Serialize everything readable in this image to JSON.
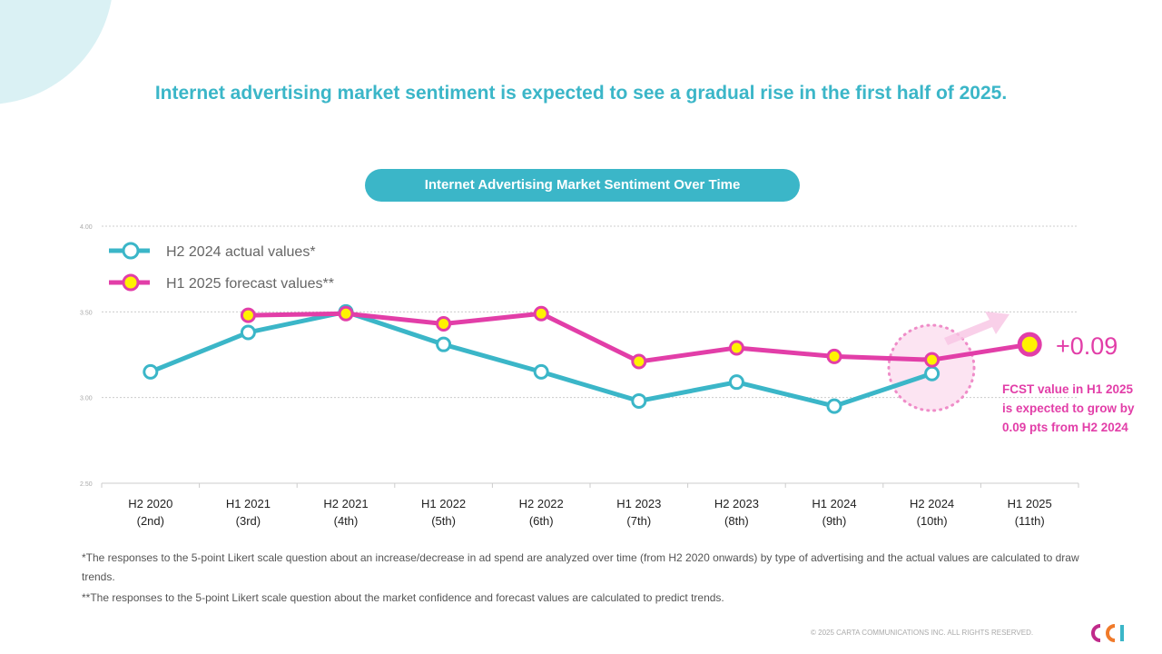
{
  "title": "Internet advertising market sentiment is expected to see a gradual rise in the first half of 2025.",
  "chart_data": {
    "type": "line",
    "title": "Internet Advertising Market Sentiment Over Time",
    "categories": [
      "H2 2020\n(2nd)",
      "H1 2021\n(3rd)",
      "H2 2021\n(4th)",
      "H1 2022\n(5th)",
      "H2 2022\n(6th)",
      "H1 2023\n(7th)",
      "H2 2023\n(8th)",
      "H1 2024\n(9th)",
      "H2 2024\n(10th)",
      "H1 2025\n(11th)"
    ],
    "ylim": [
      2.5,
      4.0
    ],
    "yticks": [
      "2.50",
      "3.00",
      "3.50",
      "4.00"
    ],
    "grid": true,
    "legend": "top-left",
    "series": [
      {
        "name": "H2 2024 actual values*",
        "color": "#3bb6c8",
        "values": [
          3.15,
          3.38,
          3.5,
          3.31,
          3.15,
          2.98,
          3.09,
          2.95,
          3.14,
          null
        ]
      },
      {
        "name": "H1 2025 forecast values**",
        "color": "#e23ea8",
        "values": [
          null,
          3.48,
          3.49,
          3.43,
          3.49,
          3.21,
          3.29,
          3.24,
          3.22,
          3.31
        ]
      }
    ],
    "annotation_delta": "+0.09",
    "annotation_text": "FCST value in H1 2025 is expected to grow by 0.09 pts from H2 2024"
  },
  "notes": [
    "*The responses to the 5-point Likert scale question about an increase/decrease in ad spend are analyzed over time (from H2 2020 onwards) by type of advertising and the actual values are calculated to draw trends.",
    "**The responses to the 5-point Likert scale question about the market confidence and forecast values are calculated to predict trends."
  ],
  "copyright": "© 2025 CARTA COMMUNICATIONS INC.    ALL RIGHTS RESERVED.",
  "logo": "CCI"
}
